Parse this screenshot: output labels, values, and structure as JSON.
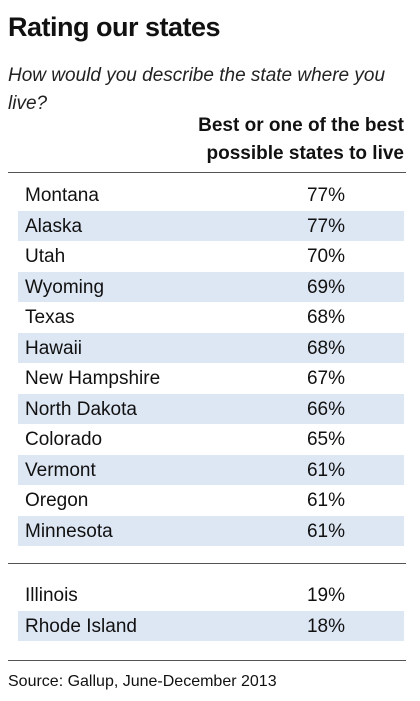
{
  "header": {
    "title": "Rating our states",
    "subtitle": "How would you describe the state where you live?",
    "column_header": "Best or one of the best possible states to live"
  },
  "table": {
    "rows": [
      [
        "Montana",
        "77%"
      ],
      [
        "Alaska",
        "77%"
      ],
      [
        "Utah",
        "70%"
      ],
      [
        "Wyoming",
        "69%"
      ],
      [
        "Texas",
        "68%"
      ],
      [
        "Hawaii",
        "68%"
      ],
      [
        "New Hampshire",
        "67%"
      ],
      [
        "North Dakota",
        "66%"
      ],
      [
        "Colorado",
        "65%"
      ],
      [
        "Vermont",
        "61%"
      ],
      [
        "Oregon",
        "61%"
      ],
      [
        "Minnesota",
        "61%"
      ]
    ],
    "bottom_rows": [
      [
        "Illinois",
        "19%"
      ],
      [
        "Rhode Island",
        "18%"
      ]
    ]
  },
  "footer": {
    "source": "Source: Gallup, June-December 2013"
  }
}
